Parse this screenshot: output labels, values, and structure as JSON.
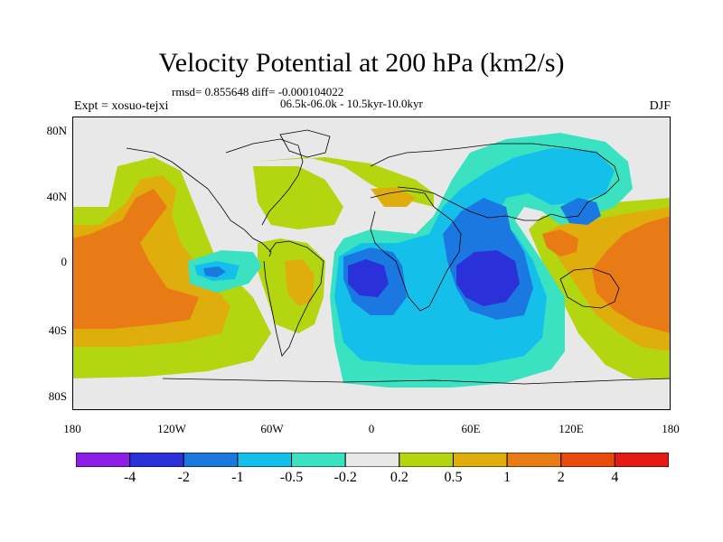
{
  "header": {
    "title": "Velocity Potential at 200 hPa (km2/s)",
    "stats": "rmsd= 0.855648 diff= -0.000104022",
    "experiment": "Expt = xosuo-tejxi",
    "period": "06.5k-06.0k - 10.5kyr-10.0kyr",
    "season": "DJF"
  },
  "map": {
    "projection": "cylindrical equidistant",
    "background_color": "#e8e8e8",
    "lat_ticks": [
      "80N",
      "40N",
      "0",
      "40S",
      "80S"
    ],
    "lon_ticks": [
      "180",
      "120W",
      "60W",
      "0",
      "60E",
      "120E",
      "180"
    ],
    "coastlines": true,
    "field_regions": [
      {
        "name": "central-pacific",
        "sign": "positive",
        "peak_level": "2"
      },
      {
        "name": "western-pacific-maritime-continent",
        "sign": "positive",
        "peak_level": "2"
      },
      {
        "name": "north-atlantic",
        "sign": "positive",
        "peak_level": "0.5"
      },
      {
        "name": "south-america-east",
        "sign": "positive",
        "peak_level": "1"
      },
      {
        "name": "eastern-tropical-pacific",
        "sign": "negative",
        "peak_level": "-1"
      },
      {
        "name": "south-atlantic-africa",
        "sign": "negative",
        "peak_level": "-2"
      },
      {
        "name": "indian-ocean",
        "sign": "negative",
        "peak_level": "-2"
      },
      {
        "name": "eurasia-asia",
        "sign": "negative",
        "peak_level": "-1"
      }
    ]
  },
  "colorbar": {
    "colors": [
      "#8c1ee6",
      "#2b31d9",
      "#1a78e0",
      "#14c0ea",
      "#3ae2c2",
      "#e8e8e8",
      "#b3d611",
      "#e0ae0c",
      "#e87b16",
      "#e84a0c",
      "#e41b12"
    ],
    "labels": [
      "-4",
      "-2",
      "-1",
      "-0.5",
      "-0.2",
      "0.2",
      "0.5",
      "1",
      "2",
      "4"
    ]
  }
}
